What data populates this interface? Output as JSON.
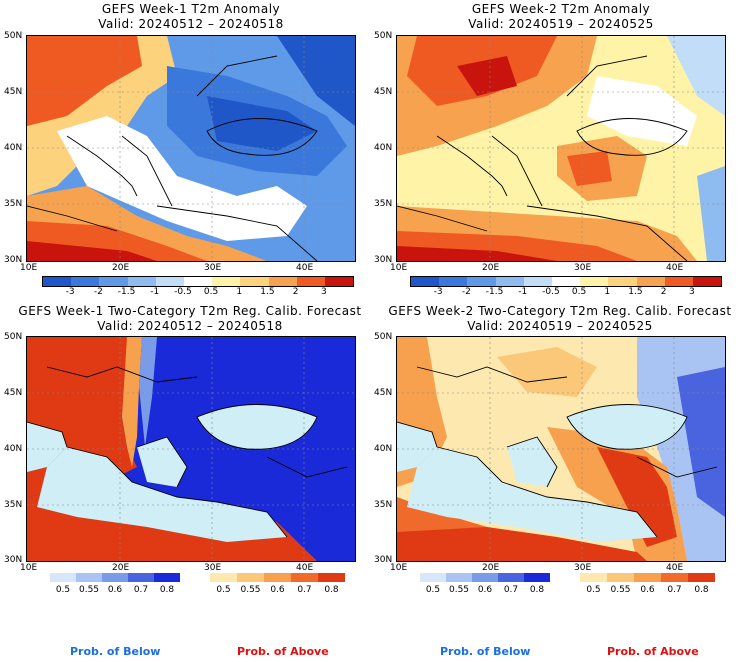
{
  "panels": [
    {
      "title": "GEFS Week-1 T2m Anomaly",
      "valid": "Valid: 20240512 – 20240518"
    },
    {
      "title": "GEFS Week-2 T2m Anomaly",
      "valid": "Valid: 20240519 – 20240525"
    },
    {
      "title": "GEFS Week-1 Two-Category T2m Reg. Calib. Forecast",
      "valid": "Valid: 20240512 – 20240518"
    },
    {
      "title": "GEFS Week-2 Two-Category T2m Reg. Calib. Forecast",
      "valid": "Valid: 20240519 – 20240525"
    }
  ],
  "lat_labels": [
    "50N",
    "45N",
    "40N",
    "35N",
    "30N"
  ],
  "lon_labels": [
    "10E",
    "20E",
    "30E",
    "40E"
  ],
  "anomaly_colorbar": {
    "labels": [
      "-3",
      "-2",
      "-1.5",
      "-1",
      "-0.5",
      "0.5",
      "1",
      "1.5",
      "2",
      "3"
    ],
    "colors": [
      "#1f57c8",
      "#3a78dc",
      "#5e9ae8",
      "#8fbcf0",
      "#c2ddf8",
      "#ffffff",
      "#fff3a8",
      "#fcd27c",
      "#f7a24e",
      "#ef5a23",
      "#c8140c"
    ]
  },
  "prob_colorbar": {
    "below_labels": [
      "0.5",
      "0.55",
      "0.6",
      "0.7",
      "0.8"
    ],
    "above_labels": [
      "0.5",
      "0.55",
      "0.6",
      "0.7",
      "0.8"
    ],
    "below_colors": [
      "#d8e6fa",
      "#a9c4f2",
      "#7a9be8",
      "#4a63df",
      "#1a2ad8"
    ],
    "above_colors": [
      "#fde9b0",
      "#fbc87a",
      "#f7a04e",
      "#f06a2c",
      "#e03a14"
    ]
  },
  "footer": {
    "below": "Prob. of Below",
    "above": "Prob. of Above"
  },
  "colors": {
    "below_text": "#1a6fe0",
    "above_text": "#e01010",
    "sea_prob": "#cfeef6"
  }
}
